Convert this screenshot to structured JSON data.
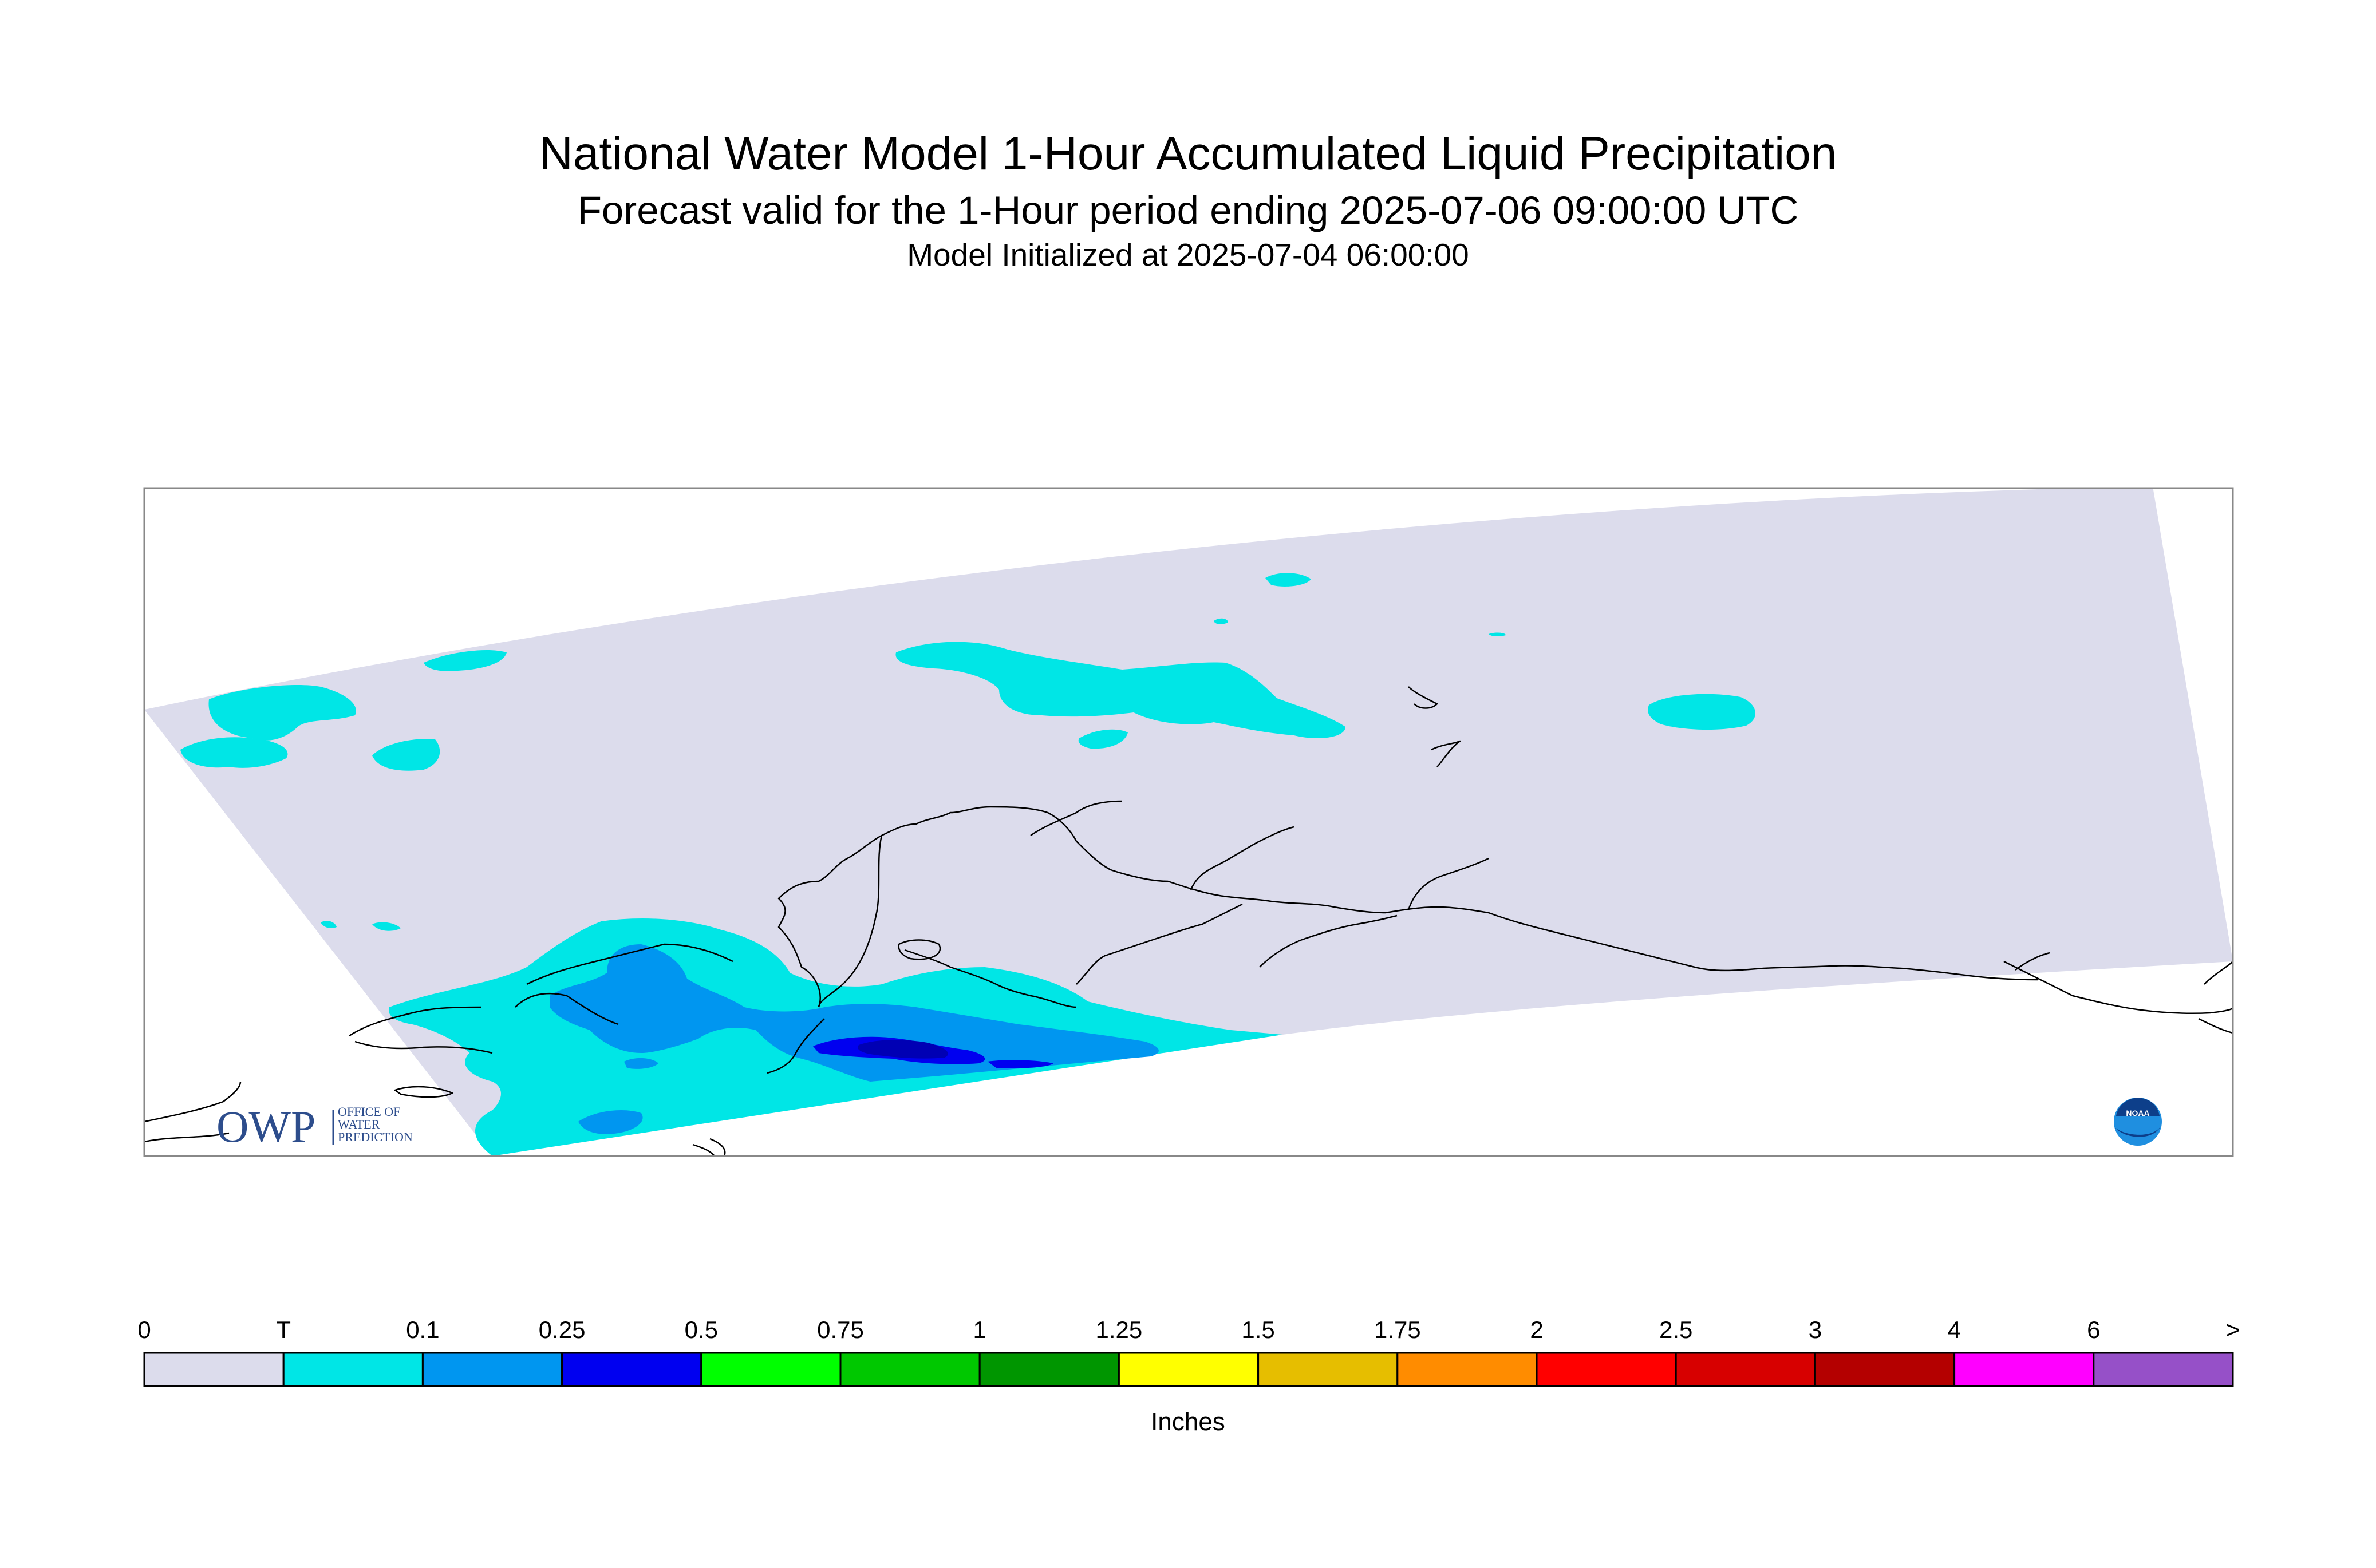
{
  "title": "National Water Model 1-Hour Accumulated Liquid Precipitation",
  "subtitle": "Forecast valid for the 1-Hour period ending 2025-07-06 09:00:00 UTC",
  "init_line": "Model Initialized at 2025-07-04 06:00:00",
  "logo_text": "OWP",
  "logo_subtext": [
    "OFFICE OF",
    "WATER",
    "PREDICTION"
  ],
  "noaa_logo_text": "NOAA",
  "legend": {
    "units": "Inches",
    "labels": [
      "0",
      "T",
      "0.1",
      "0.25",
      "0.5",
      "0.75",
      "1",
      "1.25",
      "1.5",
      "1.75",
      "2",
      "2.5",
      "3",
      "4",
      "6",
      ">"
    ],
    "colors": [
      "#dcdcec",
      "#00e6e6",
      "#0096f0",
      "#0000f0",
      "#00ff00",
      "#00c800",
      "#009600",
      "#ffff00",
      "#e6be00",
      "#ff8c00",
      "#ff0000",
      "#d70000",
      "#b40000",
      "#ff00ff",
      "#9650c8"
    ]
  },
  "colors": {
    "domain_background": "#dcdcec",
    "trace": "#00e6e6",
    "light_blue": "#0096f0",
    "blue": "#0000f0",
    "dark_blue": "#0000b4",
    "coastline": "#000000",
    "frame": "#888888"
  }
}
